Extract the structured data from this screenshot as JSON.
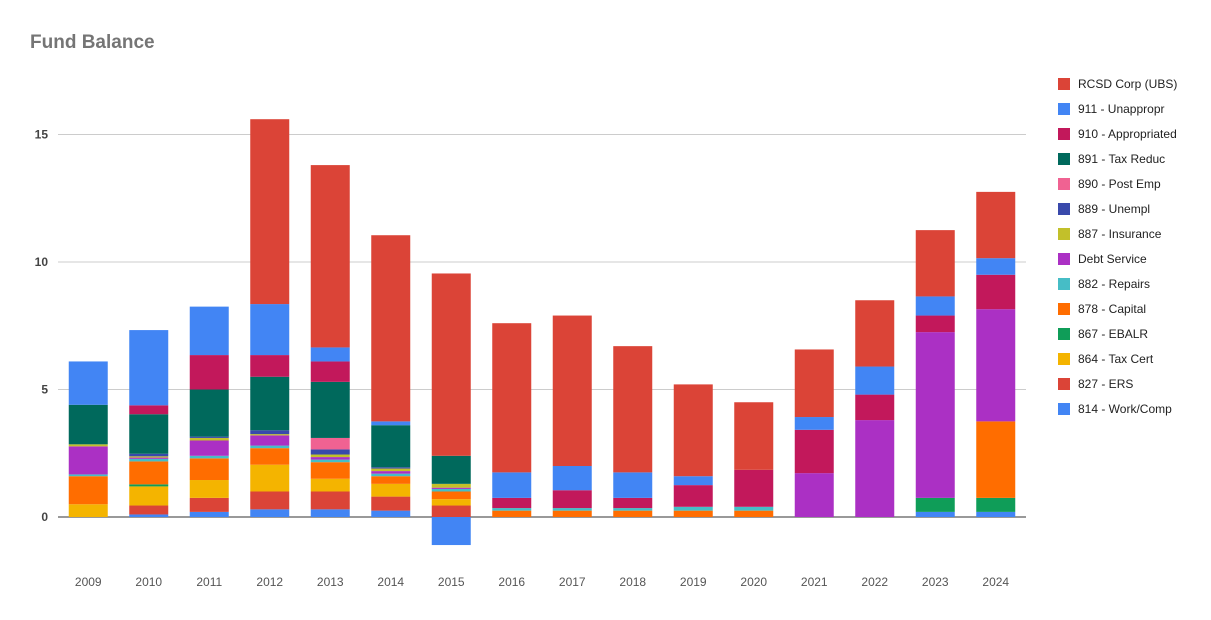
{
  "chart_data": {
    "type": "bar",
    "stacked": true,
    "title": "Fund Balance",
    "xlabel": "",
    "ylabel": "",
    "ylim": [
      -1.2,
      16
    ],
    "yticks": [
      0,
      5,
      10,
      15
    ],
    "gridlines": true,
    "legend_position": "right",
    "categories": [
      "2009",
      "2010",
      "2011",
      "2012",
      "2013",
      "2014",
      "2015",
      "2016",
      "2017",
      "2018",
      "2019",
      "2020",
      "2021",
      "2022",
      "2023",
      "2024"
    ],
    "series": [
      {
        "name": "814 - Work/Comp",
        "color": "#4285f4",
        "values": [
          0,
          0.1,
          0.2,
          0.3,
          0.3,
          0.25,
          -1.1,
          0,
          0,
          0,
          0,
          0,
          0,
          0,
          0.2,
          0.2
        ]
      },
      {
        "name": "827 - ERS",
        "color": "#db4437",
        "values": [
          0,
          0.35,
          0.55,
          0.7,
          0.7,
          0.55,
          0.45,
          0,
          0,
          0,
          0,
          0,
          0,
          0,
          0,
          0
        ]
      },
      {
        "name": "864 - Tax Cert",
        "color": "#f4b400",
        "values": [
          0.5,
          0.75,
          0.7,
          1.05,
          0.5,
          0.5,
          0.25,
          0,
          0,
          0,
          0,
          0,
          0,
          0,
          0,
          0
        ]
      },
      {
        "name": "867 - EBALR",
        "color": "#0f9d58",
        "values": [
          0,
          0.08,
          0,
          0,
          0,
          0,
          0,
          0,
          0,
          0,
          0,
          0,
          0,
          0,
          0.55,
          0.55
        ]
      },
      {
        "name": "878 - Capital",
        "color": "#ff6d00",
        "values": [
          1.1,
          0.9,
          0.85,
          0.65,
          0.65,
          0.3,
          0.3,
          0.25,
          0.25,
          0.25,
          0.25,
          0.25,
          0,
          0,
          0,
          3
        ]
      },
      {
        "name": "882 - Repairs",
        "color": "#46bdc6",
        "values": [
          0.07,
          0.1,
          0.1,
          0.1,
          0.1,
          0.1,
          0.1,
          0.1,
          0.1,
          0.1,
          0.15,
          0.15,
          0,
          0,
          0,
          0
        ]
      },
      {
        "name": "Debt Service",
        "color": "#ab30c4",
        "values": [
          1.1,
          0.05,
          0.6,
          0.4,
          0.1,
          0.1,
          0.05,
          0,
          0,
          0,
          0,
          0,
          1.72,
          3.8,
          6.5,
          4.4
        ]
      },
      {
        "name": "887 - Insurance",
        "color": "#c2c02a",
        "values": [
          0.08,
          0.05,
          0.1,
          0.05,
          0.1,
          0.1,
          0.15,
          0,
          0,
          0,
          0,
          0,
          0,
          0,
          0,
          0
        ]
      },
      {
        "name": "889 - Unempl",
        "color": "#3949ab",
        "values": [
          0,
          0.1,
          0.05,
          0.15,
          0.2,
          0.05,
          0,
          0,
          0,
          0,
          0,
          0,
          0,
          0,
          0,
          0
        ]
      },
      {
        "name": "890 - Post Emp",
        "color": "#f06292",
        "values": [
          0,
          0,
          0,
          0,
          0.45,
          0,
          0,
          0,
          0,
          0,
          0,
          0,
          0,
          0,
          0,
          0
        ]
      },
      {
        "name": "891 - Tax Reduc",
        "color": "#00695c",
        "values": [
          1.55,
          1.55,
          1.85,
          2.1,
          2.2,
          1.65,
          1.1,
          0,
          0,
          0,
          0,
          0,
          0,
          0,
          0,
          0
        ]
      },
      {
        "name": "910 - Appropriated",
        "color": "#c2185b",
        "values": [
          0,
          0.35,
          1.35,
          0.85,
          0.8,
          0,
          0,
          0.4,
          0.7,
          0.4,
          0.85,
          1.45,
          1.7,
          1,
          0.65,
          1.35
        ]
      },
      {
        "name": "911 - Unappropr",
        "color": "#4285f4",
        "values": [
          1.7,
          2.95,
          1.9,
          2,
          0.55,
          0.15,
          0,
          1,
          0.95,
          1,
          0.35,
          0,
          0.5,
          1.1,
          0.75,
          0.65
        ]
      },
      {
        "name": "RCSD Corp (UBS)",
        "color": "#db4437",
        "values": [
          0,
          0,
          0,
          7.25,
          7.15,
          7.3,
          7.15,
          5.85,
          5.9,
          4.95,
          3.6,
          2.65,
          2.65,
          2.6,
          2.6,
          2.6
        ]
      }
    ]
  }
}
